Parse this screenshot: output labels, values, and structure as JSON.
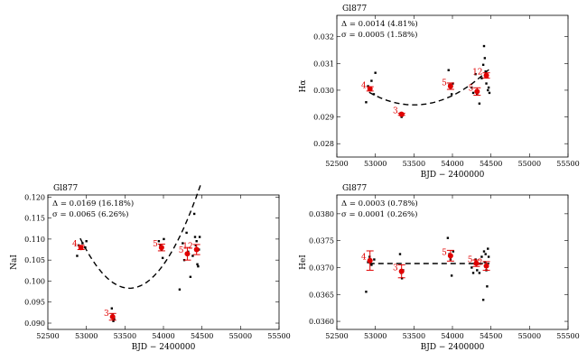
{
  "chart_data": [
    {
      "id": "halpha",
      "type": "scatter",
      "title": "Gl877",
      "xlabel": "BJD − 2400000",
      "ylabel": "Hα",
      "xlim": [
        52500,
        55500
      ],
      "ylim": [
        0.0275,
        0.0328
      ],
      "xticks": [
        52500,
        53000,
        53500,
        54000,
        54500,
        55000,
        55500
      ],
      "xtick_labels": [
        "52500",
        "53000",
        "53500",
        "54000",
        "54500",
        "55000",
        "55500"
      ],
      "yticks": [
        0.028,
        0.029,
        0.03,
        0.031,
        0.032
      ],
      "ytick_labels": [
        "0.028",
        "0.029",
        "0.030",
        "0.031",
        "0.032"
      ],
      "annotation": [
        "Δ = 0.0014 (4.81%)",
        "σ = 0.0005 (1.58%)"
      ],
      "points": [
        {
          "x": 52880,
          "y": 0.02955
        },
        {
          "x": 52905,
          "y": 0.03015
        },
        {
          "x": 52920,
          "y": 0.03005
        },
        {
          "x": 52950,
          "y": 0.03035
        },
        {
          "x": 52980,
          "y": 0.02985
        },
        {
          "x": 53000,
          "y": 0.03065
        },
        {
          "x": 53330,
          "y": 0.02915
        },
        {
          "x": 53340,
          "y": 0.029
        },
        {
          "x": 53350,
          "y": 0.02905
        },
        {
          "x": 53360,
          "y": 0.0291
        },
        {
          "x": 53950,
          "y": 0.03075
        },
        {
          "x": 53960,
          "y": 0.0302
        },
        {
          "x": 53975,
          "y": 0.0301
        },
        {
          "x": 53990,
          "y": 0.02985
        },
        {
          "x": 54005,
          "y": 0.03025
        },
        {
          "x": 54250,
          "y": 0.0301
        },
        {
          "x": 54270,
          "y": 0.0299
        },
        {
          "x": 54300,
          "y": 0.0306
        },
        {
          "x": 54320,
          "y": 0.02985
        },
        {
          "x": 54350,
          "y": 0.0295
        },
        {
          "x": 54380,
          "y": 0.03045
        },
        {
          "x": 54400,
          "y": 0.03095
        },
        {
          "x": 54410,
          "y": 0.03165
        },
        {
          "x": 54420,
          "y": 0.0312
        },
        {
          "x": 54430,
          "y": 0.0307
        },
        {
          "x": 54440,
          "y": 0.03025
        },
        {
          "x": 54450,
          "y": 0.0305
        },
        {
          "x": 54460,
          "y": 0.03
        },
        {
          "x": 54470,
          "y": 0.0301
        },
        {
          "x": 54480,
          "y": 0.0299
        }
      ],
      "bins": [
        {
          "x": 52930,
          "y": 0.03005,
          "err": 8e-05,
          "label": "4"
        },
        {
          "x": 53340,
          "y": 0.0291,
          "err": 4e-05,
          "label": "3"
        },
        {
          "x": 53975,
          "y": 0.03015,
          "err": 0.00012,
          "label": "5"
        },
        {
          "x": 54320,
          "y": 0.02995,
          "err": 0.00014,
          "label": "5"
        },
        {
          "x": 54440,
          "y": 0.03055,
          "err": 0.0001,
          "label": "12"
        }
      ],
      "fit": {
        "x_start": 52920,
        "x_end": 54480,
        "coeffs": [
          0.02945,
          1.4e-09,
          53500
        ]
      }
    },
    {
      "id": "nai",
      "type": "scatter",
      "title": "Gl877",
      "xlabel": "BJD − 2400000",
      "ylabel": "NaI",
      "xlim": [
        52500,
        55500
      ],
      "ylim": [
        0.0885,
        0.1205
      ],
      "xticks": [
        52500,
        53000,
        53500,
        54000,
        54500,
        55000,
        55500
      ],
      "xtick_labels": [
        "52500",
        "53000",
        "53500",
        "54000",
        "54500",
        "55000",
        "55500"
      ],
      "yticks": [
        0.09,
        0.095,
        0.1,
        0.105,
        0.11,
        0.115,
        0.12
      ],
      "ytick_labels": [
        "0.090",
        "0.095",
        "0.100",
        "0.105",
        "0.110",
        "0.115",
        "0.120"
      ],
      "annotation": [
        "Δ = 0.0169 (16.18%)",
        "σ = 0.0065 (6.26%)"
      ],
      "points": [
        {
          "x": 52880,
          "y": 0.106
        },
        {
          "x": 52900,
          "y": 0.1085
        },
        {
          "x": 52920,
          "y": 0.108
        },
        {
          "x": 52950,
          "y": 0.109
        },
        {
          "x": 52985,
          "y": 0.108
        },
        {
          "x": 53000,
          "y": 0.1095
        },
        {
          "x": 53330,
          "y": 0.0935
        },
        {
          "x": 53340,
          "y": 0.092
        },
        {
          "x": 53350,
          "y": 0.0905
        },
        {
          "x": 53360,
          "y": 0.091
        },
        {
          "x": 53940,
          "y": 0.1095
        },
        {
          "x": 53960,
          "y": 0.1085
        },
        {
          "x": 53975,
          "y": 0.1075
        },
        {
          "x": 53990,
          "y": 0.1055
        },
        {
          "x": 54005,
          "y": 0.11
        },
        {
          "x": 54210,
          "y": 0.098
        },
        {
          "x": 54250,
          "y": 0.109
        },
        {
          "x": 54270,
          "y": 0.105
        },
        {
          "x": 54300,
          "y": 0.1115
        },
        {
          "x": 54320,
          "y": 0.107
        },
        {
          "x": 54350,
          "y": 0.101
        },
        {
          "x": 54380,
          "y": 0.106
        },
        {
          "x": 54400,
          "y": 0.116
        },
        {
          "x": 54410,
          "y": 0.1105
        },
        {
          "x": 54420,
          "y": 0.1085
        },
        {
          "x": 54430,
          "y": 0.1095
        },
        {
          "x": 54440,
          "y": 0.104
        },
        {
          "x": 54450,
          "y": 0.1035
        },
        {
          "x": 54460,
          "y": 0.1075
        },
        {
          "x": 54470,
          "y": 0.1105
        }
      ],
      "bins": [
        {
          "x": 52930,
          "y": 0.108,
          "err": 0.0005,
          "label": "4"
        },
        {
          "x": 53340,
          "y": 0.0915,
          "err": 0.0008,
          "label": "3"
        },
        {
          "x": 53975,
          "y": 0.108,
          "err": 0.0008,
          "label": "5"
        },
        {
          "x": 54310,
          "y": 0.1065,
          "err": 0.0015,
          "label": "5"
        },
        {
          "x": 54430,
          "y": 0.1075,
          "err": 0.0012,
          "label": "12"
        }
      ],
      "fit": {
        "x_start": 52920,
        "x_end": 54480,
        "coeffs": [
          0.0983,
          2.9e-08,
          53560
        ]
      }
    },
    {
      "id": "hei",
      "type": "scatter",
      "title": "Gl877",
      "xlabel": "BJD − 2400000",
      "ylabel": "HeI",
      "xlim": [
        52500,
        55500
      ],
      "ylim": [
        0.03585,
        0.03835
      ],
      "xticks": [
        52500,
        53000,
        53500,
        54000,
        54500,
        55000,
        55500
      ],
      "xtick_labels": [
        "52500",
        "53000",
        "53500",
        "54000",
        "54500",
        "55000",
        "55500"
      ],
      "yticks": [
        0.036,
        0.0365,
        0.037,
        0.0375,
        0.038
      ],
      "ytick_labels": [
        "0.0360",
        "0.0365",
        "0.0370",
        "0.0375",
        "0.0380"
      ],
      "annotation": [
        "Δ = 0.0003 (0.78%)",
        "σ = 0.0001 (0.26%)"
      ],
      "points": [
        {
          "x": 52880,
          "y": 0.03655
        },
        {
          "x": 52905,
          "y": 0.0371
        },
        {
          "x": 52925,
          "y": 0.0372
        },
        {
          "x": 52950,
          "y": 0.03705
        },
        {
          "x": 52985,
          "y": 0.03715
        },
        {
          "x": 53320,
          "y": 0.03725
        },
        {
          "x": 53335,
          "y": 0.0369
        },
        {
          "x": 53345,
          "y": 0.0368
        },
        {
          "x": 53360,
          "y": 0.03695
        },
        {
          "x": 53940,
          "y": 0.03755
        },
        {
          "x": 53960,
          "y": 0.03725
        },
        {
          "x": 53975,
          "y": 0.03715
        },
        {
          "x": 53990,
          "y": 0.03685
        },
        {
          "x": 54010,
          "y": 0.0373
        },
        {
          "x": 54250,
          "y": 0.037
        },
        {
          "x": 54270,
          "y": 0.0369
        },
        {
          "x": 54300,
          "y": 0.03715
        },
        {
          "x": 54320,
          "y": 0.03695
        },
        {
          "x": 54350,
          "y": 0.0369
        },
        {
          "x": 54380,
          "y": 0.0372
        },
        {
          "x": 54400,
          "y": 0.0364
        },
        {
          "x": 54410,
          "y": 0.0373
        },
        {
          "x": 54420,
          "y": 0.0371
        },
        {
          "x": 54430,
          "y": 0.03725
        },
        {
          "x": 54440,
          "y": 0.03695
        },
        {
          "x": 54450,
          "y": 0.03665
        },
        {
          "x": 54460,
          "y": 0.03735
        },
        {
          "x": 54470,
          "y": 0.0372
        }
      ],
      "bins": [
        {
          "x": 52930,
          "y": 0.03713,
          "err": 0.00018,
          "label": "4"
        },
        {
          "x": 53340,
          "y": 0.03693,
          "err": 0.00012,
          "label": "3"
        },
        {
          "x": 53975,
          "y": 0.03722,
          "err": 0.0001,
          "label": "5"
        },
        {
          "x": 54310,
          "y": 0.03708,
          "err": 6e-05,
          "label": "5"
        },
        {
          "x": 54440,
          "y": 0.03703,
          "err": 8e-05,
          "label": "12"
        }
      ],
      "fit": {
        "x_start": 52920,
        "x_end": 54480,
        "coeffs": [
          0.037075,
          0.0,
          53500
        ]
      }
    }
  ]
}
